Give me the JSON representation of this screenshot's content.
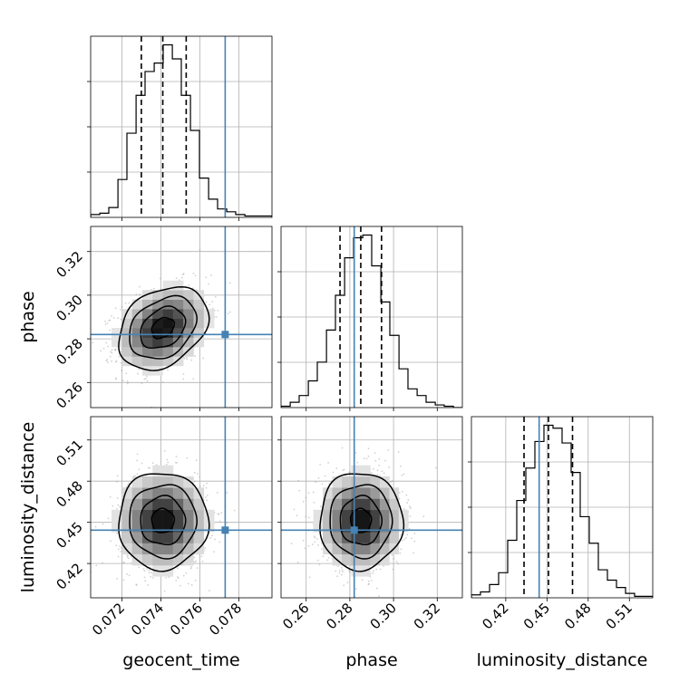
{
  "chart_data": {
    "type": "corner",
    "parameters": [
      "geocent_time",
      "phase",
      "luminosity_distance"
    ],
    "axis_labels": [
      "geocent_time",
      "phase",
      "luminosity_distance"
    ],
    "ranges": {
      "geocent_time": [
        0.0704,
        0.0797
      ],
      "phase": [
        0.2485,
        0.3315
      ],
      "luminosity_distance": [
        0.395,
        0.527
      ]
    },
    "ticks": {
      "geocent_time": [
        {
          "value": 0.072,
          "label": "0.072"
        },
        {
          "value": 0.074,
          "label": "0.074"
        },
        {
          "value": 0.076,
          "label": "0.076"
        },
        {
          "value": 0.078,
          "label": "0.078"
        }
      ],
      "phase": [
        {
          "value": 0.26,
          "label": "0.26"
        },
        {
          "value": 0.28,
          "label": "0.28"
        },
        {
          "value": 0.3,
          "label": "0.30"
        },
        {
          "value": 0.32,
          "label": "0.32"
        }
      ],
      "luminosity_distance": [
        {
          "value": 0.42,
          "label": "0.42"
        },
        {
          "value": 0.45,
          "label": "0.45"
        },
        {
          "value": 0.48,
          "label": "0.48"
        },
        {
          "value": 0.51,
          "label": "0.51"
        }
      ]
    },
    "truths": {
      "geocent_time": 0.0773,
      "phase": 0.282,
      "luminosity_distance": 0.4443
    },
    "quantiles": {
      "geocent_time": [
        0.073,
        0.0741,
        0.0753
      ],
      "phase": [
        0.2755,
        0.285,
        0.2945
      ],
      "luminosity_distance": [
        0.4333,
        0.4511,
        0.4686
      ]
    },
    "marginal_histograms": {
      "geocent_time": {
        "edges": [
          0.0704,
          0.07087,
          0.07133,
          0.0718,
          0.07226,
          0.07273,
          0.07319,
          0.07366,
          0.07412,
          0.07459,
          0.07505,
          0.07552,
          0.07598,
          0.07645,
          0.07691,
          0.07738,
          0.07784,
          0.07831,
          0.07877,
          0.07924,
          0.0797
        ],
        "counts": [
          2,
          3,
          7,
          27,
          60,
          87,
          104,
          110,
          123,
          113,
          87,
          62,
          28,
          13,
          6,
          4,
          2,
          1,
          1,
          1
        ]
      },
      "phase": {
        "edges": [
          0.2485,
          0.2527,
          0.2568,
          0.261,
          0.2651,
          0.2693,
          0.2734,
          0.2776,
          0.2817,
          0.2859,
          0.29,
          0.2942,
          0.2983,
          0.3025,
          0.3066,
          0.3108,
          0.3149,
          0.3191,
          0.3232,
          0.3274,
          0.3315
        ],
        "counts": [
          1,
          4,
          9,
          20,
          34,
          58,
          84,
          112,
          127,
          129,
          106,
          79,
          54,
          29,
          14,
          9,
          4,
          2,
          1,
          0
        ]
      },
      "luminosity_distance": {
        "edges": [
          0.395,
          0.4016,
          0.4082,
          0.4148,
          0.4214,
          0.428,
          0.4346,
          0.4412,
          0.4478,
          0.4544,
          0.461,
          0.4676,
          0.4742,
          0.4808,
          0.4874,
          0.494,
          0.5006,
          0.5072,
          0.5138,
          0.5204,
          0.527
        ],
        "counts": [
          2,
          4,
          9,
          17,
          39,
          66,
          88,
          106,
          117,
          115,
          105,
          85,
          55,
          37,
          19,
          12,
          7,
          3,
          1,
          1
        ]
      }
    },
    "joint_2d": [
      {
        "x": "geocent_time",
        "y": "phase",
        "center": [
          0.0741,
          0.285
        ],
        "sigma": [
          0.00115,
          0.0095
        ],
        "rho": 0.3
      },
      {
        "x": "geocent_time",
        "y": "luminosity_distance",
        "center": [
          0.0741,
          0.4511
        ],
        "sigma": [
          0.00115,
          0.0177
        ],
        "rho": 0.0
      },
      {
        "x": "phase",
        "y": "luminosity_distance",
        "center": [
          0.285,
          0.4511
        ],
        "sigma": [
          0.0095,
          0.0177
        ],
        "rho": 0.0
      }
    ],
    "grid": true,
    "colors": {
      "truth": "#4682b4",
      "contour": "#000000",
      "hist": "#000000",
      "grid": "#b0b0b0",
      "scatter": "#9a9a9a"
    }
  }
}
